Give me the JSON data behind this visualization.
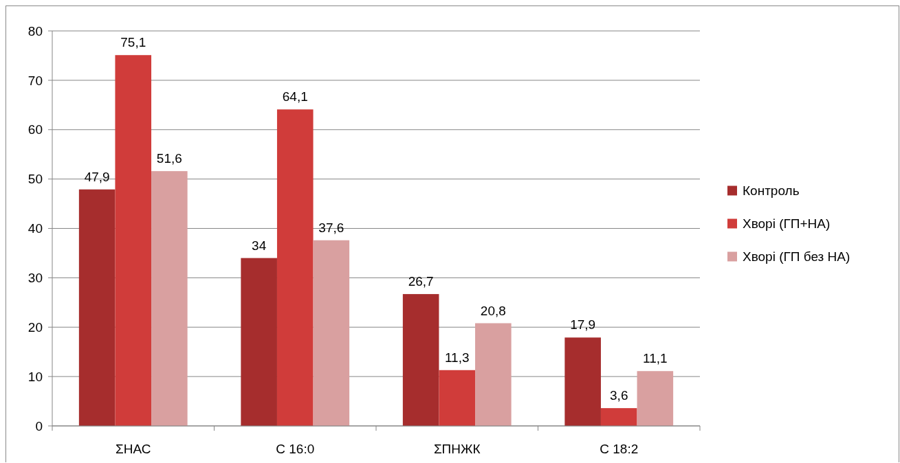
{
  "chart_data": {
    "type": "bar",
    "categories": [
      "ΣНАС",
      "С 16:0",
      "ΣПНЖК",
      "С 18:2"
    ],
    "series": [
      {
        "name": "Контроль",
        "color": "#a62d2d",
        "values": [
          47.9,
          34,
          26.7,
          17.9
        ],
        "value_labels": [
          "47,9",
          "34",
          "26,7",
          "17,9"
        ]
      },
      {
        "name": "Хворі (ГП+НА)",
        "color": "#d03c3a",
        "values": [
          75.1,
          64.1,
          11.3,
          3.6
        ],
        "value_labels": [
          "75,1",
          "64,1",
          "11,3",
          "3,6"
        ]
      },
      {
        "name": "Хворі (ГП без НА)",
        "color": "#d9a0a0",
        "values": [
          51.6,
          37.6,
          20.8,
          11.1
        ],
        "value_labels": [
          "51,6",
          "37,6",
          "20,8",
          "11,1"
        ]
      }
    ],
    "ylim": [
      0,
      80
    ],
    "yticks": [
      0,
      10,
      20,
      30,
      40,
      50,
      60,
      70,
      80
    ],
    "grid": "y",
    "legend": "right"
  }
}
